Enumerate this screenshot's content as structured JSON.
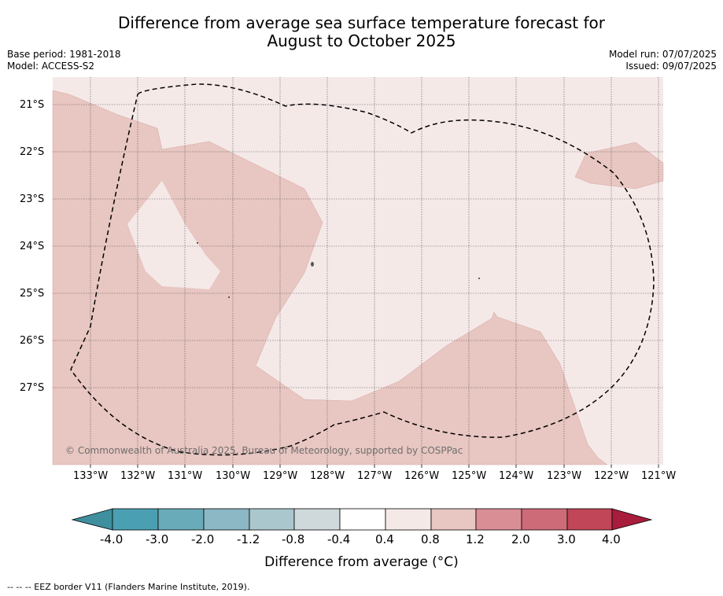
{
  "title_line1": "Difference from average sea surface temperature forecast for",
  "title_line2": "August to October 2025",
  "base_period": "Base period: 1981-2018",
  "model": "Model: ACCESS-S2",
  "model_run": "Model run: 07/07/2025",
  "issued": "Issued: 09/07/2025",
  "lat_labels": [
    "21°S",
    "22°S",
    "23°S",
    "24°S",
    "25°S",
    "26°S",
    "27°S"
  ],
  "lon_labels": [
    "133°W",
    "132°W",
    "131°W",
    "130°W",
    "129°W",
    "128°W",
    "127°W",
    "126°W",
    "125°W",
    "124°W",
    "123°W",
    "122°W",
    "121°W"
  ],
  "credit": "© Commonwealth of Australia 2025, Bureau of Meteorology, supported by COSPPac",
  "colorbar": {
    "ticks": [
      "-4.0",
      "-3.0",
      "-2.0",
      "-1.2",
      "-0.8",
      "-0.4",
      "0.4",
      "0.8",
      "1.2",
      "2.0",
      "3.0",
      "4.0"
    ],
    "colors": [
      "#3f8f9e",
      "#4aa0b2",
      "#6aabb9",
      "#8bb8c4",
      "#a9c7cc",
      "#cfd8da",
      "#ffffff",
      "#f5e9e8",
      "#e8c6c1",
      "#d98e96",
      "#cd6b78",
      "#c04658",
      "#a81c3c"
    ],
    "title": "Difference from average (°C)"
  },
  "footer": "--  --  -- EEZ border V11 (Flanders Marine Institute, 2019).",
  "map": {
    "colors": {
      "light": "#f5e9e8",
      "medium": "#e8c6c1"
    }
  }
}
